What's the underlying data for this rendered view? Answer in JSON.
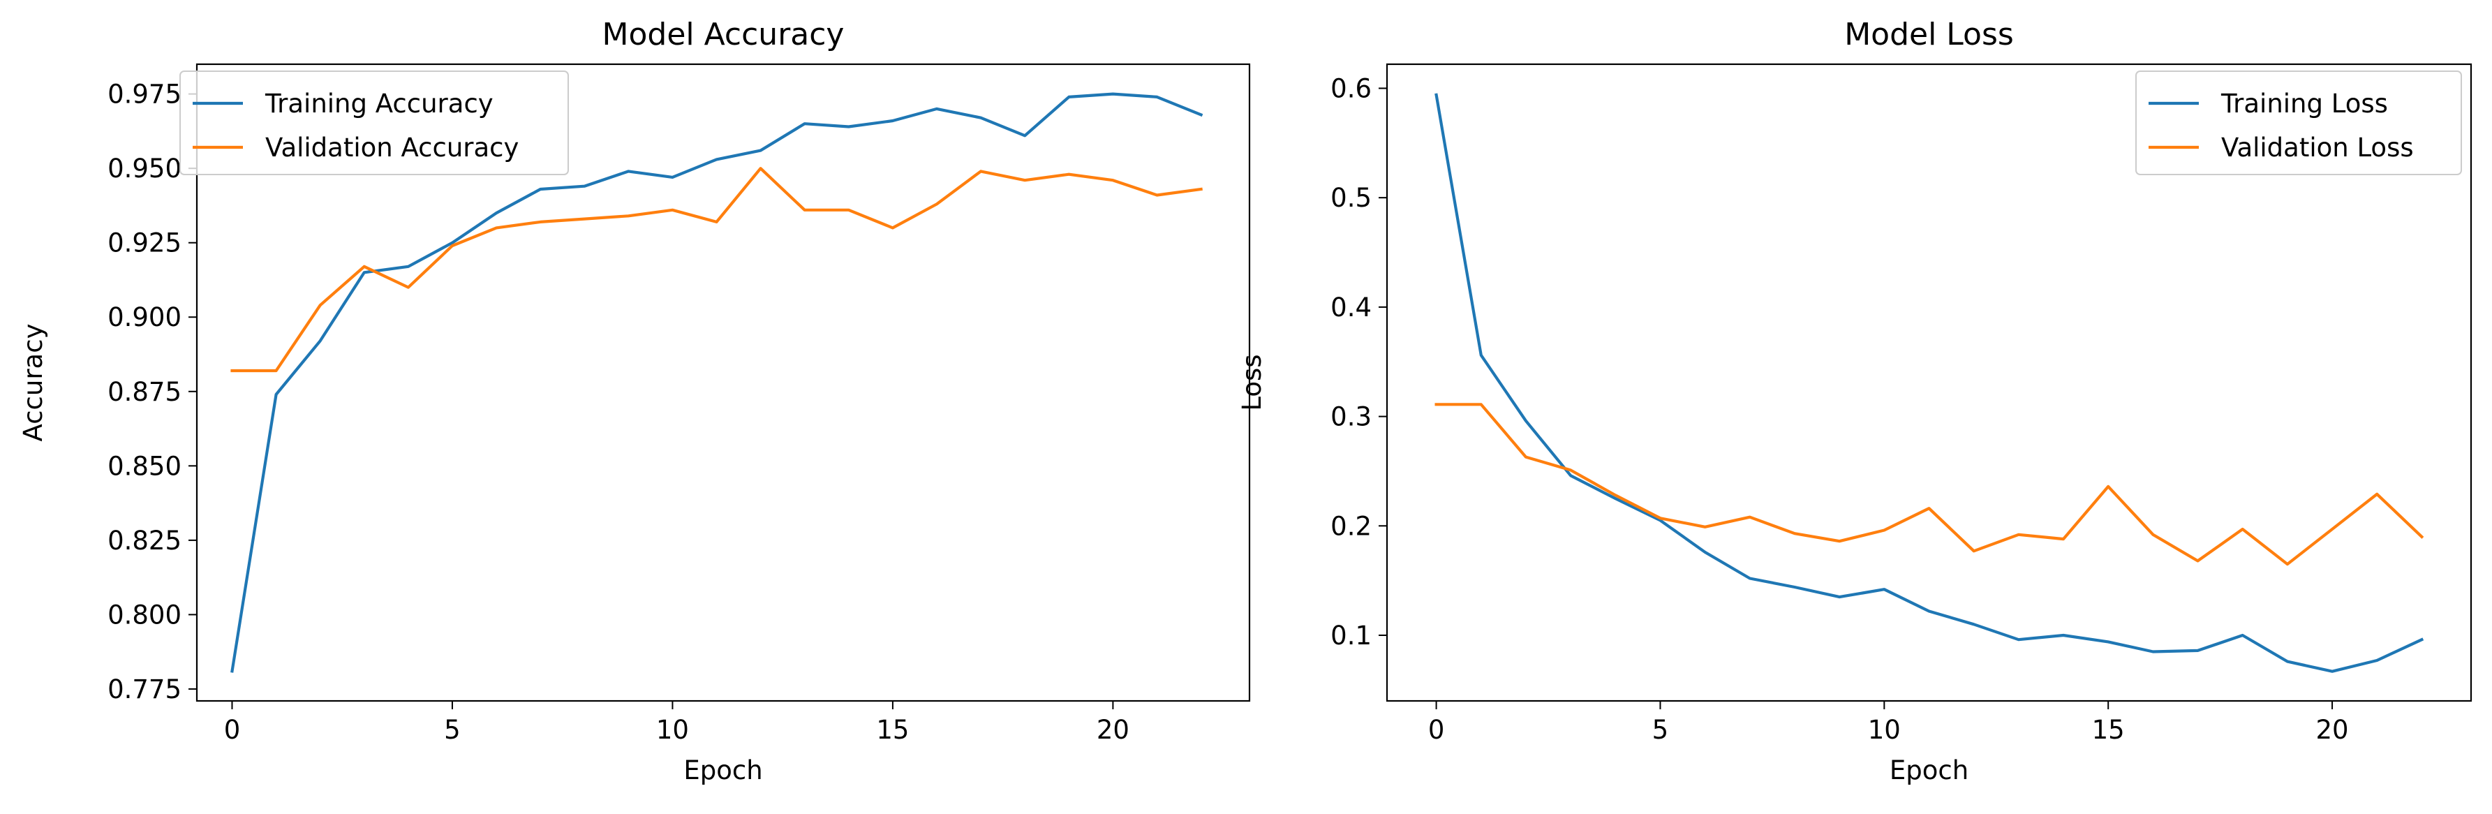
{
  "chart_data": [
    {
      "type": "line",
      "title": "Model Accuracy",
      "xlabel": "Epoch",
      "ylabel": "Accuracy",
      "xlim": [
        -0.8,
        23.1
      ],
      "ylim": [
        0.771,
        0.985
      ],
      "xticks": [
        0,
        5,
        10,
        15,
        20
      ],
      "yticks": [
        0.775,
        0.8,
        0.825,
        0.85,
        0.875,
        0.9,
        0.925,
        0.95,
        0.975
      ],
      "ytick_labels": [
        "0.775",
        "0.800",
        "0.825",
        "0.850",
        "0.875",
        "0.900",
        "0.925",
        "0.950",
        "0.975"
      ],
      "grid": false,
      "legend_position": "upper-left",
      "x": [
        0,
        1,
        2,
        3,
        4,
        5,
        6,
        7,
        8,
        9,
        10,
        11,
        12,
        13,
        14,
        15,
        16,
        17,
        18,
        19,
        20,
        21,
        22
      ],
      "series": [
        {
          "name": "Training Accuracy",
          "color": "#1f77b4",
          "values": [
            0.781,
            0.874,
            0.892,
            0.915,
            0.917,
            0.925,
            0.935,
            0.943,
            0.944,
            0.949,
            0.947,
            0.953,
            0.956,
            0.965,
            0.964,
            0.966,
            0.97,
            0.967,
            0.961,
            0.974,
            0.975,
            0.974,
            0.968
          ]
        },
        {
          "name": "Validation Accuracy",
          "color": "#ff7f0e",
          "values": [
            0.882,
            0.882,
            0.904,
            0.917,
            0.91,
            0.924,
            0.93,
            0.932,
            0.933,
            0.934,
            0.936,
            0.932,
            0.95,
            0.936,
            0.936,
            0.93,
            0.938,
            0.949,
            0.946,
            0.948,
            0.946,
            0.941,
            0.943
          ]
        }
      ]
    },
    {
      "type": "line",
      "title": "Model Loss",
      "xlabel": "Epoch",
      "ylabel": "Loss",
      "xlim": [
        -1.1,
        23.1
      ],
      "ylim": [
        0.04,
        0.622
      ],
      "xticks": [
        0,
        5,
        10,
        15,
        20
      ],
      "yticks": [
        0.1,
        0.2,
        0.3,
        0.4,
        0.5,
        0.6
      ],
      "ytick_labels": [
        "0.1",
        "0.2",
        "0.3",
        "0.4",
        "0.5",
        "0.6"
      ],
      "grid": false,
      "legend_position": "upper-right",
      "x": [
        0,
        1,
        2,
        3,
        4,
        5,
        6,
        7,
        8,
        9,
        10,
        11,
        12,
        13,
        14,
        15,
        16,
        17,
        18,
        19,
        20,
        21,
        22
      ],
      "series": [
        {
          "name": "Training Loss",
          "color": "#1f77b4",
          "values": [
            0.594,
            0.356,
            0.296,
            0.246,
            0.225,
            0.205,
            0.176,
            0.152,
            0.144,
            0.135,
            0.142,
            0.122,
            0.11,
            0.096,
            0.1,
            0.094,
            0.085,
            0.086,
            0.1,
            0.076,
            0.067,
            0.077,
            0.096
          ]
        },
        {
          "name": "Validation Loss",
          "color": "#ff7f0e",
          "values": [
            0.311,
            0.311,
            0.263,
            0.251,
            0.228,
            0.207,
            0.199,
            0.208,
            0.193,
            0.186,
            0.196,
            0.216,
            0.177,
            0.192,
            0.188,
            0.236,
            0.192,
            0.168,
            0.197,
            0.165,
            0.197,
            0.229,
            0.19
          ]
        }
      ]
    }
  ]
}
